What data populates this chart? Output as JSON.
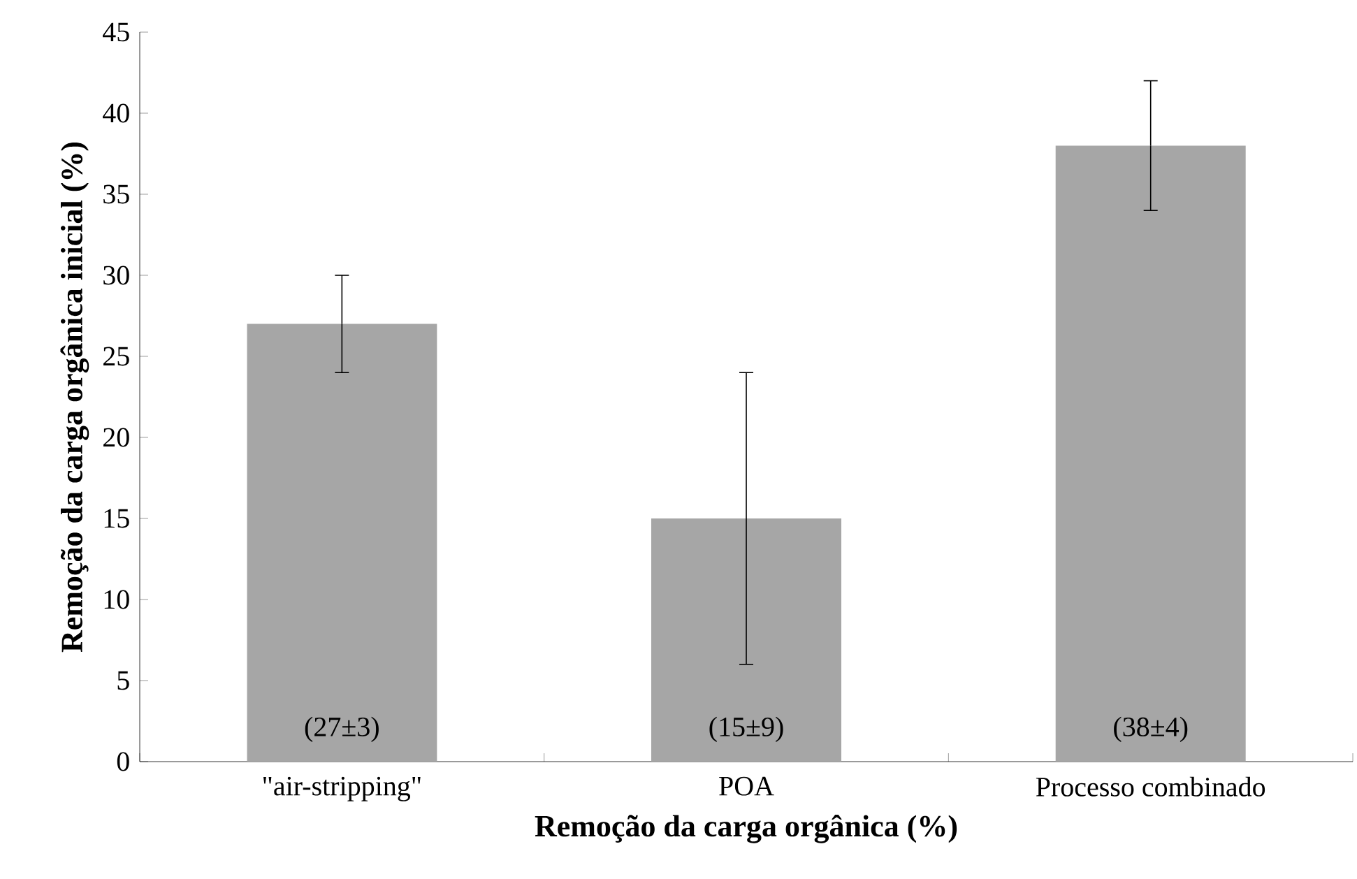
{
  "chart_data": {
    "type": "bar",
    "xlabel": "Remoção da carga orgânica (%)",
    "ylabel": "Remoção da carga orgânica inicial (%)",
    "categories": [
      "\"air-stripping\"",
      "POA",
      "Processo combinado"
    ],
    "values": [
      27,
      15,
      38
    ],
    "errors": [
      3,
      9,
      4
    ],
    "color": "#a6a6a6",
    "value_labels": [
      "(27±3)",
      "(15±9)",
      "(38±4)"
    ],
    "ylim": [
      0,
      45
    ],
    "yticks": [
      0,
      5,
      10,
      15,
      20,
      25,
      30,
      35,
      40,
      45
    ],
    "grid": false
  }
}
